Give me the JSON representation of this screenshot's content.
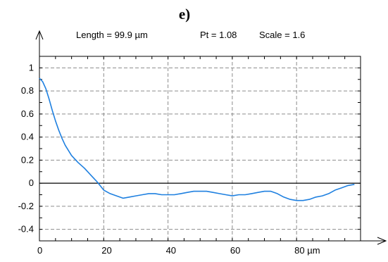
{
  "chart_data": {
    "type": "line",
    "panel_label": "e)",
    "header": {
      "length": "Length = 99.9 µm",
      "pt": "Pt = 1.08",
      "scale": "Scale = 1.6"
    },
    "x_unit": "µm",
    "xlim": [
      0,
      99.9
    ],
    "ylim": [
      -0.5,
      1.1
    ],
    "x_ticks": [
      0,
      20,
      40,
      60,
      80
    ],
    "x_tick_labels": [
      "0",
      "20",
      "40",
      "60",
      "80 µm"
    ],
    "y_ticks": [
      1,
      0.8,
      0.6,
      0.4,
      0.2,
      0,
      -0.2,
      -0.4
    ],
    "y_tick_labels": [
      "1",
      "0.8",
      "0.6",
      "0.4",
      "0.2",
      "0",
      "-0.2",
      "-0.4"
    ],
    "grid": true,
    "zero_line": true,
    "series": [
      {
        "color": "#1f80e0",
        "x": [
          0,
          1,
          2,
          3,
          4,
          5,
          6,
          7,
          8,
          10,
          12,
          14,
          16,
          18,
          20,
          22,
          24,
          26,
          28,
          30,
          32,
          34,
          36,
          38,
          40,
          42,
          44,
          46,
          48,
          50,
          52,
          54,
          56,
          58,
          60,
          62,
          64,
          66,
          68,
          70,
          72,
          74,
          76,
          78,
          80,
          82,
          84,
          86,
          88,
          90,
          92,
          94,
          96,
          98
        ],
        "values": [
          0.91,
          0.88,
          0.82,
          0.73,
          0.63,
          0.54,
          0.46,
          0.39,
          0.33,
          0.24,
          0.18,
          0.13,
          0.07,
          0.01,
          -0.06,
          -0.09,
          -0.11,
          -0.13,
          -0.12,
          -0.11,
          -0.1,
          -0.09,
          -0.09,
          -0.1,
          -0.1,
          -0.1,
          -0.09,
          -0.08,
          -0.07,
          -0.07,
          -0.07,
          -0.08,
          -0.09,
          -0.1,
          -0.11,
          -0.1,
          -0.1,
          -0.09,
          -0.08,
          -0.07,
          -0.07,
          -0.09,
          -0.12,
          -0.14,
          -0.15,
          -0.15,
          -0.14,
          -0.12,
          -0.11,
          -0.09,
          -0.06,
          -0.04,
          -0.02,
          -0.01
        ]
      }
    ]
  }
}
